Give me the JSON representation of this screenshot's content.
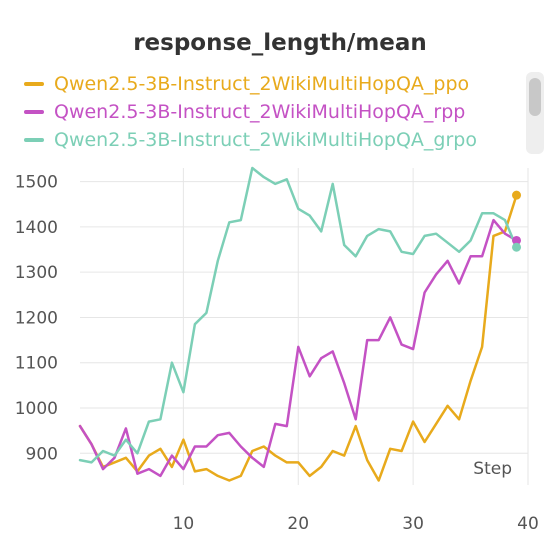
{
  "chart_data": {
    "type": "line",
    "title": "response_length/mean",
    "xlabel": "Step",
    "ylabel": "",
    "xlim": [
      1,
      40
    ],
    "ylim": [
      830,
      1530
    ],
    "xticks": [
      10,
      20,
      30,
      40
    ],
    "yticks": [
      900,
      1000,
      1100,
      1200,
      1300,
      1400,
      1500
    ],
    "grid": true,
    "legend_position": "top",
    "series": [
      {
        "name": "Qwen2.5-3B-Instruct_2WikiMultiHopQA_ppo",
        "color": "#e8aa1c",
        "x": [
          1,
          2,
          3,
          4,
          5,
          6,
          7,
          8,
          9,
          10,
          11,
          12,
          13,
          14,
          15,
          16,
          17,
          18,
          19,
          20,
          21,
          22,
          23,
          24,
          25,
          26,
          27,
          28,
          29,
          30,
          31,
          32,
          33,
          34,
          35,
          36,
          37,
          38,
          39
        ],
        "y": [
          960,
          920,
          870,
          880,
          890,
          860,
          895,
          910,
          870,
          930,
          860,
          865,
          850,
          840,
          850,
          905,
          915,
          895,
          880,
          880,
          850,
          870,
          905,
          895,
          960,
          885,
          840,
          910,
          905,
          970,
          925,
          965,
          1005,
          975,
          1060,
          1135,
          1380,
          1390,
          1470
        ]
      },
      {
        "name": "Qwen2.5-3B-Instruct_2WikiMultiHopQA_rpp",
        "color": "#c452c4",
        "x": [
          1,
          2,
          3,
          4,
          5,
          6,
          7,
          8,
          9,
          10,
          11,
          12,
          13,
          14,
          15,
          16,
          17,
          18,
          19,
          20,
          21,
          22,
          23,
          24,
          25,
          26,
          27,
          28,
          29,
          30,
          31,
          32,
          33,
          34,
          35,
          36,
          37,
          38,
          39
        ],
        "y": [
          960,
          920,
          865,
          890,
          955,
          855,
          865,
          850,
          895,
          865,
          915,
          915,
          940,
          945,
          915,
          890,
          870,
          965,
          960,
          1135,
          1070,
          1110,
          1125,
          1055,
          975,
          1150,
          1150,
          1200,
          1140,
          1130,
          1255,
          1295,
          1325,
          1275,
          1335,
          1335,
          1415,
          1385,
          1370
        ]
      },
      {
        "name": "Qwen2.5-3B-Instruct_2WikiMultiHopQA_grpo",
        "color": "#7ccfb6",
        "x": [
          1,
          2,
          3,
          4,
          5,
          6,
          7,
          8,
          9,
          10,
          11,
          12,
          13,
          14,
          15,
          16,
          17,
          18,
          19,
          20,
          21,
          22,
          23,
          24,
          25,
          26,
          27,
          28,
          29,
          30,
          31,
          32,
          33,
          34,
          35,
          36,
          37,
          38,
          39
        ],
        "y": [
          885,
          880,
          905,
          895,
          930,
          900,
          970,
          975,
          1100,
          1035,
          1185,
          1210,
          1325,
          1410,
          1415,
          1530,
          1510,
          1495,
          1505,
          1440,
          1425,
          1390,
          1495,
          1360,
          1335,
          1380,
          1395,
          1390,
          1345,
          1340,
          1380,
          1385,
          1365,
          1345,
          1370,
          1430,
          1430,
          1415,
          1355
        ]
      }
    ]
  }
}
